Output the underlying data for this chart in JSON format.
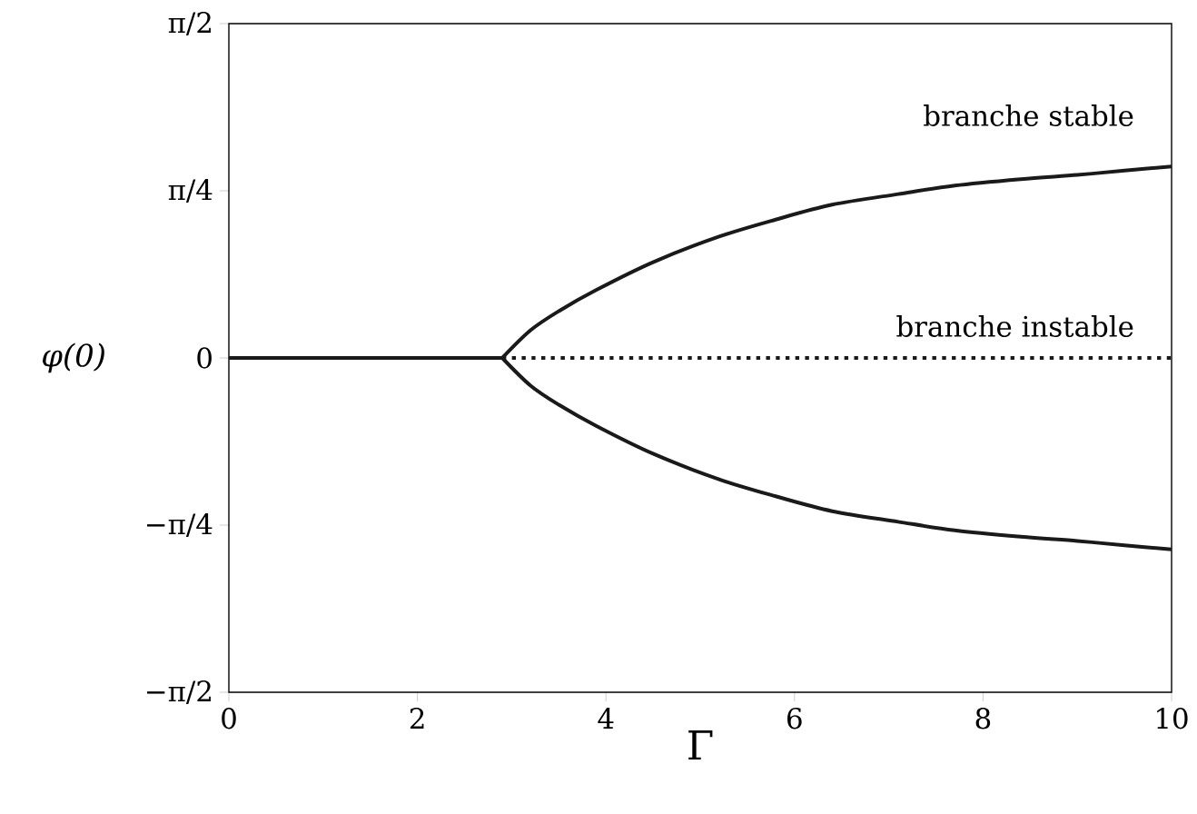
{
  "chart_data": {
    "type": "line",
    "xlabel": "Γ",
    "ylabel": "φ(0)",
    "xlim": [
      0,
      10
    ],
    "xticks": [
      0,
      2,
      4,
      6,
      8,
      10
    ],
    "ylim": [
      -1.5708,
      1.5708
    ],
    "yticks": [
      {
        "value": -1.5708,
        "label": "−π/2"
      },
      {
        "value": -0.7854,
        "label": "−π/4"
      },
      {
        "value": 0,
        "label": "0"
      },
      {
        "value": 0.7854,
        "label": "π/4"
      },
      {
        "value": 1.5708,
        "label": "π/2"
      }
    ],
    "series": [
      {
        "color": "#1a1a1a",
        "line_style": "solid",
        "x": [
          0,
          2.9
        ],
        "values": [
          0,
          0
        ]
      },
      {
        "color": "#1a1a1a",
        "line_style": "solid",
        "x": [
          2.9,
          3.2,
          3.5,
          3.9,
          4.5,
          5.2,
          5.8,
          6.4,
          7.1,
          7.7,
          8.4,
          9,
          9.5,
          10
        ],
        "values": [
          0,
          0.13,
          0.22,
          0.32,
          0.45,
          0.57,
          0.65,
          0.72,
          0.77,
          0.81,
          0.84,
          0.86,
          0.88,
          0.9
        ]
      },
      {
        "color": "#1a1a1a",
        "line_style": "solid",
        "x": [
          2.9,
          3.2,
          3.5,
          3.9,
          4.5,
          5.2,
          5.8,
          6.4,
          7.1,
          7.7,
          8.4,
          9,
          9.5,
          10
        ],
        "values": [
          0,
          -0.13,
          -0.22,
          -0.32,
          -0.45,
          -0.57,
          -0.65,
          -0.72,
          -0.77,
          -0.81,
          -0.84,
          -0.86,
          -0.88,
          -0.9
        ]
      },
      {
        "color": "#1a1a1a",
        "line_style": "dotted",
        "x": [
          2.9,
          10
        ],
        "values": [
          0,
          0
        ]
      }
    ],
    "annotations": [
      "branche stable",
      "branche instable"
    ]
  }
}
